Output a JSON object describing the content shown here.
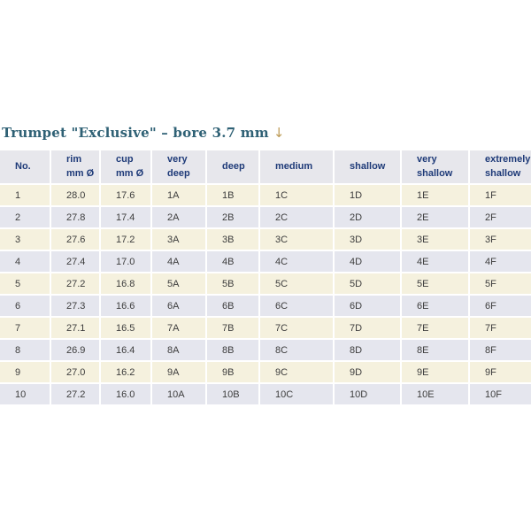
{
  "title": {
    "text": "Trumpet \"Exclusive\" – bore 3.7 mm",
    "arrow": "↓"
  },
  "colors": {
    "page_bg": "#ffffff",
    "title_text": "#2f6175",
    "arrow": "#bd9b57",
    "header_bg": "#e7e7ec",
    "header_text": "#1e3a78",
    "row_odd_bg": "#f5f1de",
    "row_even_bg": "#e5e6ee",
    "body_text": "#3d3d3d"
  },
  "table": {
    "columns": [
      "No.",
      "rim mm Ø",
      "cup mm Ø",
      "very deep",
      "deep",
      "medium",
      "shallow",
      "very shallow",
      "extremely shallow"
    ],
    "rows": [
      [
        "1",
        "28.0",
        "17.6",
        "1A",
        "1B",
        "1C",
        "1D",
        "1E",
        "1F"
      ],
      [
        "2",
        "27.8",
        "17.4",
        "2A",
        "2B",
        "2C",
        "2D",
        "2E",
        "2F"
      ],
      [
        "3",
        "27.6",
        "17.2",
        "3A",
        "3B",
        "3C",
        "3D",
        "3E",
        "3F"
      ],
      [
        "4",
        "27.4",
        "17.0",
        "4A",
        "4B",
        "4C",
        "4D",
        "4E",
        "4F"
      ],
      [
        "5",
        "27.2",
        "16.8",
        "5A",
        "5B",
        "5C",
        "5D",
        "5E",
        "5F"
      ],
      [
        "6",
        "27.3",
        "16.6",
        "6A",
        "6B",
        "6C",
        "6D",
        "6E",
        "6F"
      ],
      [
        "7",
        "27.1",
        "16.5",
        "7A",
        "7B",
        "7C",
        "7D",
        "7E",
        "7F"
      ],
      [
        "8",
        "26.9",
        "16.4",
        "8A",
        "8B",
        "8C",
        "8D",
        "8E",
        "8F"
      ],
      [
        "9",
        "27.0",
        "16.2",
        "9A",
        "9B",
        "9C",
        "9D",
        "9E",
        "9F"
      ],
      [
        "10",
        "27.2",
        "16.0",
        "10A",
        "10B",
        "10C",
        "10D",
        "10E",
        "10F"
      ]
    ]
  }
}
